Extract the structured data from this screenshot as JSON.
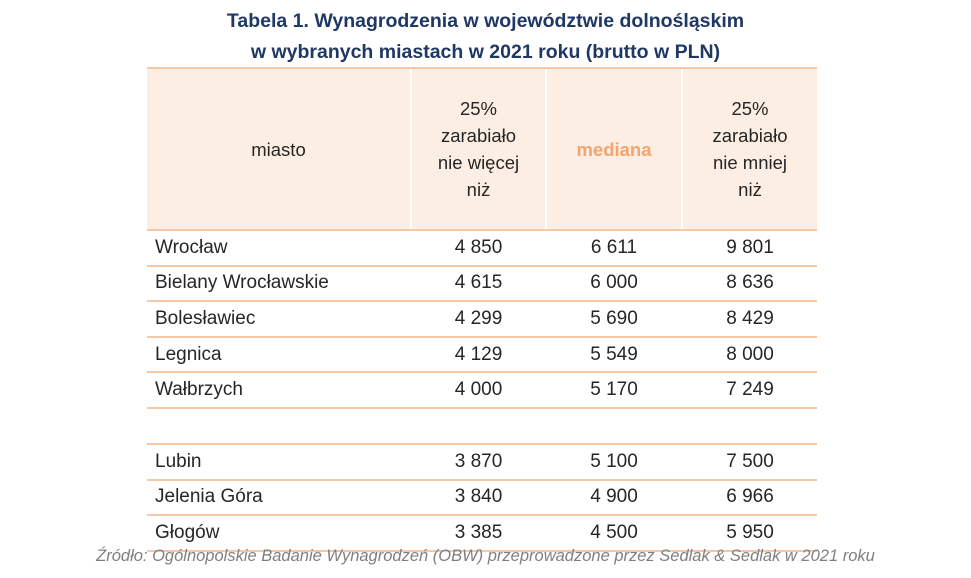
{
  "title": {
    "line1": "Tabela 1. Wynagrodzenia w województwie dolnośląskim",
    "line2": "w wybranych miastach w 2021 roku (brutto w PLN)"
  },
  "table": {
    "headers": {
      "city": "miasto",
      "p25": [
        "25%",
        "zarabiało",
        "nie więcej",
        "niż"
      ],
      "median": "mediana",
      "p75": [
        "25%",
        "zarabiało",
        "nie mniej",
        "niż"
      ]
    },
    "group1": [
      {
        "city": "Wrocław",
        "p25": "4 850",
        "median": "6 611",
        "p75": "9 801"
      },
      {
        "city": "Bielany Wrocławskie",
        "p25": "4 615",
        "median": "6 000",
        "p75": "8 636"
      },
      {
        "city": "Bolesławiec",
        "p25": "4 299",
        "median": "5 690",
        "p75": "8 429"
      },
      {
        "city": "Legnica",
        "p25": "4 129",
        "median": "5 549",
        "p75": "8 000"
      },
      {
        "city": "Wałbrzych",
        "p25": "4 000",
        "median": "5 170",
        "p75": "7 249"
      }
    ],
    "group2": [
      {
        "city": "Lubin",
        "p25": "3 870",
        "median": "5 100",
        "p75": "7 500"
      },
      {
        "city": "Jelenia Góra",
        "p25": "3 840",
        "median": "4 900",
        "p75": "6 966"
      },
      {
        "city": "Głogów",
        "p25": "3 385",
        "median": "4 500",
        "p75": "5 950"
      }
    ]
  },
  "source": "Źródło: Ogólnopolskie Badanie Wynagrodzeń (OBW) przeprowadzone przez Sedlak & Sedlak w 2021 roku",
  "colors": {
    "title": "#1f3864",
    "header_bg": "#fdeee3",
    "rule": "#f4c8a6",
    "median_accent": "#f4a46c",
    "text": "#262626",
    "source": "#7f7f7f"
  }
}
